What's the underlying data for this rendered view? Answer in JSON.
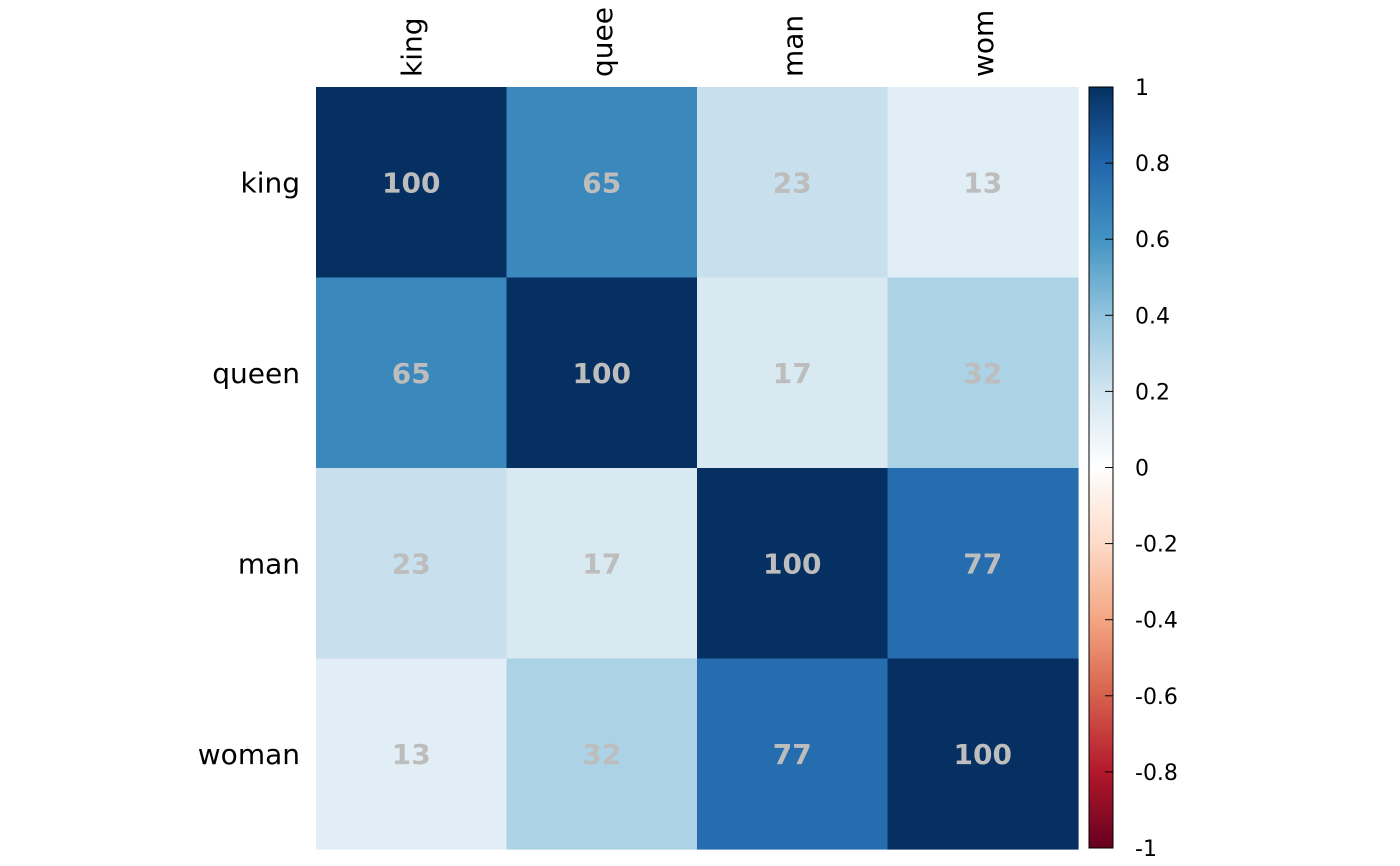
{
  "chart_data": {
    "type": "heatmap",
    "row_labels": [
      "king",
      "queen",
      "man",
      "woman"
    ],
    "col_labels": [
      "king",
      "quee",
      "man",
      "wom"
    ],
    "values": [
      [
        100,
        65,
        23,
        13
      ],
      [
        65,
        100,
        17,
        32
      ],
      [
        23,
        17,
        100,
        77
      ],
      [
        13,
        32,
        77,
        100
      ]
    ],
    "cell_labels": [
      [
        "100",
        "65",
        "23",
        "13"
      ],
      [
        "65",
        "100",
        "17",
        "32"
      ],
      [
        "23",
        "17",
        "100",
        "77"
      ],
      [
        "13",
        "32",
        "77",
        "100"
      ]
    ],
    "colorbar": {
      "range": [
        -1,
        1
      ],
      "ticks": [
        "1",
        "0.8",
        "0.6",
        "0.4",
        "0.2",
        "0",
        "-0.2",
        "-0.4",
        "-0.6",
        "-0.8",
        "-1"
      ],
      "tick_values": [
        1,
        0.8,
        0.6,
        0.4,
        0.2,
        0,
        -0.2,
        -0.4,
        -0.6,
        -0.8,
        -1
      ],
      "palette": [
        "#67001f",
        "#b2182b",
        "#d6604d",
        "#f4a582",
        "#fddbc7",
        "#ffffff",
        "#d1e5f0",
        "#92c5de",
        "#4393c3",
        "#2166ac",
        "#053061"
      ]
    },
    "colors": {
      "text_on_cells": "#bdbdbd"
    },
    "title": "",
    "xlabel": "",
    "ylabel": ""
  }
}
